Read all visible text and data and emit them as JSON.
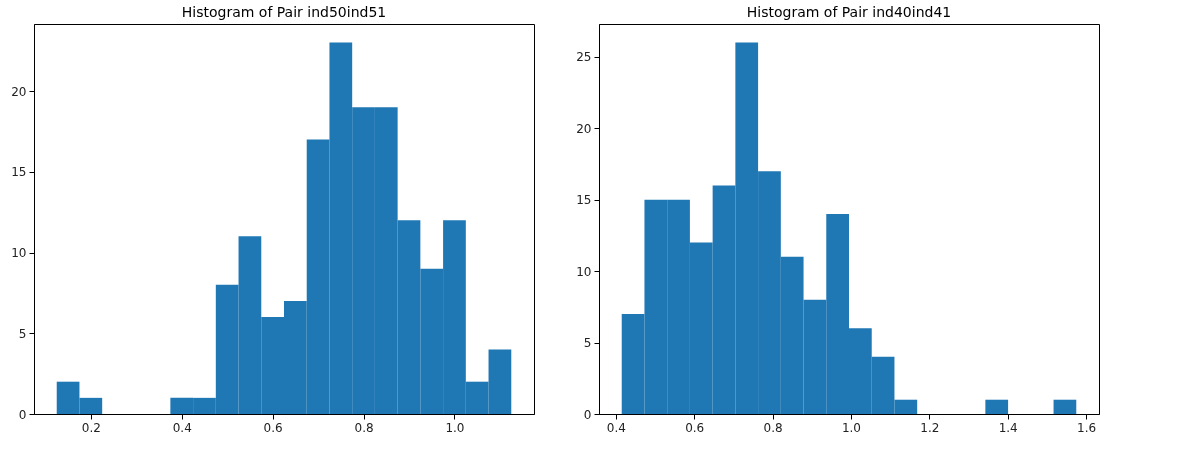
{
  "chart_data": [
    {
      "type": "histogram",
      "title": "Histogram of Pair ind50ind51",
      "color": "#1f77b4",
      "bins": [
        0.125,
        0.175,
        0.225,
        0.275,
        0.325,
        0.375,
        0.425,
        0.475,
        0.525,
        0.575,
        0.625,
        0.675,
        0.725,
        0.775,
        0.825,
        0.875,
        0.925,
        0.975,
        1.025,
        1.075,
        1.125
      ],
      "values": [
        2,
        1,
        0,
        0,
        0,
        1,
        1,
        8,
        11,
        6,
        7,
        17,
        23,
        19,
        19,
        12,
        9,
        12,
        2,
        4
      ],
      "xlim": [
        0.075,
        1.175
      ],
      "xticks": [
        {
          "value": 0.2,
          "label": "0.2"
        },
        {
          "value": 0.4,
          "label": "0.4"
        },
        {
          "value": 0.6,
          "label": "0.6"
        },
        {
          "value": 0.8,
          "label": "0.8"
        },
        {
          "value": 1.0,
          "label": "1.0"
        }
      ],
      "ylim": [
        0,
        24.15
      ],
      "yticks": [
        0,
        5,
        10,
        15,
        20
      ],
      "grid": false
    },
    {
      "type": "histogram",
      "title": "Histogram of Pair ind40ind41",
      "color": "#1f77b4",
      "bins": [
        0.415,
        0.473,
        0.531,
        0.589,
        0.647,
        0.705,
        0.763,
        0.821,
        0.879,
        0.937,
        0.995,
        1.053,
        1.111,
        1.169,
        1.227,
        1.285,
        1.343,
        1.401,
        1.459,
        1.517,
        1.575
      ],
      "values": [
        7,
        15,
        15,
        12,
        16,
        26,
        17,
        11,
        8,
        14,
        6,
        4,
        1,
        0,
        0,
        0,
        1,
        0,
        0,
        1
      ],
      "xlim": [
        0.357,
        1.633
      ],
      "xticks": [
        {
          "value": 0.4,
          "label": "0.4"
        },
        {
          "value": 0.6,
          "label": "0.6"
        },
        {
          "value": 0.8,
          "label": "0.8"
        },
        {
          "value": 1.0,
          "label": "1.0"
        },
        {
          "value": 1.2,
          "label": "1.2"
        },
        {
          "value": 1.4,
          "label": "1.4"
        },
        {
          "value": 1.6,
          "label": "1.6"
        }
      ],
      "ylim": [
        0,
        27.3
      ],
      "yticks": [
        0,
        5,
        10,
        15,
        20,
        25
      ],
      "grid": false
    }
  ]
}
